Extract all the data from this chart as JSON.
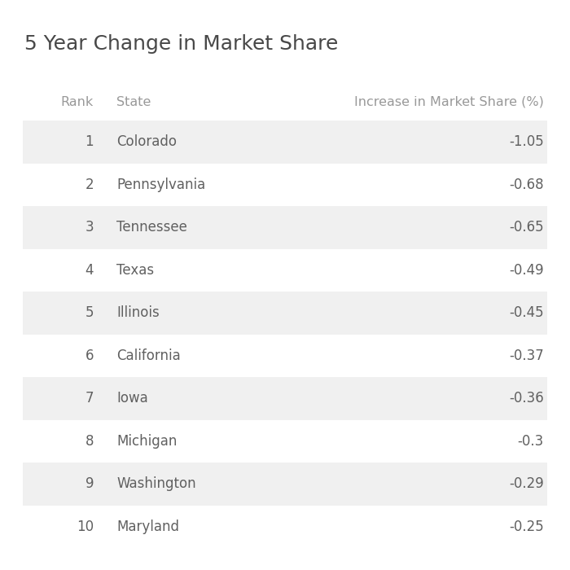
{
  "title": "5 Year Change in Market Share",
  "col_rank": "Rank",
  "col_state": "State",
  "col_value": "Increase in Market Share (%)",
  "rows": [
    {
      "rank": 1,
      "state": "Colorado",
      "value": "-1.05"
    },
    {
      "rank": 2,
      "state": "Pennsylvania",
      "value": "-0.68"
    },
    {
      "rank": 3,
      "state": "Tennessee",
      "value": "-0.65"
    },
    {
      "rank": 4,
      "state": "Texas",
      "value": "-0.49"
    },
    {
      "rank": 5,
      "state": "Illinois",
      "value": "-0.45"
    },
    {
      "rank": 6,
      "state": "California",
      "value": "-0.37"
    },
    {
      "rank": 7,
      "state": "Iowa",
      "value": "-0.36"
    },
    {
      "rank": 8,
      "state": "Michigan",
      "value": "-0.3"
    },
    {
      "rank": 9,
      "state": "Washington",
      "value": "-0.29"
    },
    {
      "rank": 10,
      "state": "Maryland",
      "value": "-0.25"
    }
  ],
  "background_color": "#ffffff",
  "stripe_color": "#f0f0f0",
  "text_color": "#606060",
  "header_color": "#999999",
  "title_color": "#484848",
  "title_fontsize": 18,
  "header_fontsize": 11.5,
  "row_fontsize": 12
}
